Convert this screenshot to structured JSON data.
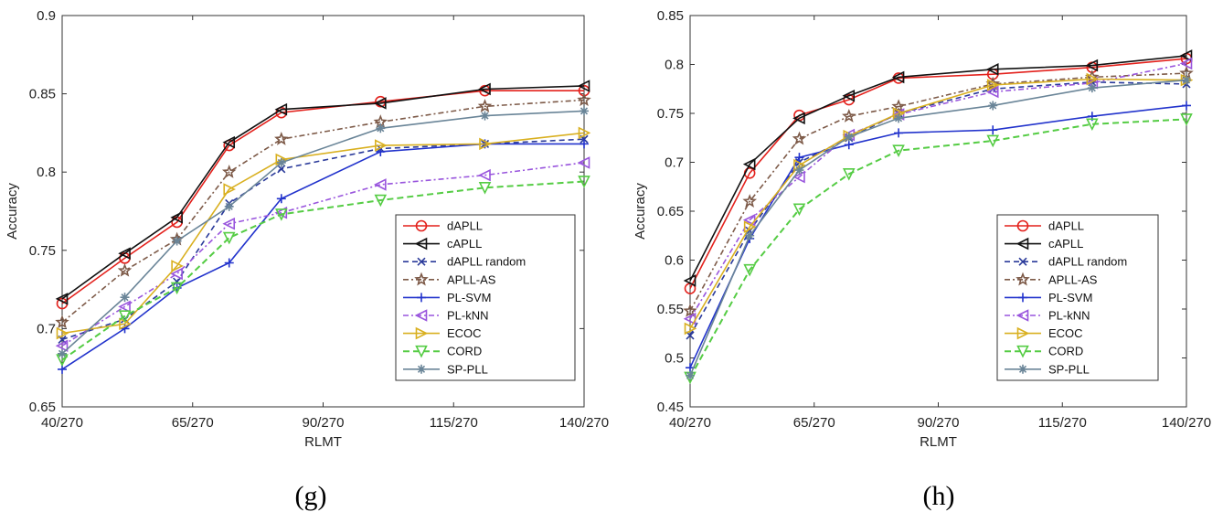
{
  "figure": {
    "captions": [
      "(g)",
      "(h)"
    ]
  },
  "chart_data": [
    {
      "type": "line",
      "caption": "(g)",
      "xlabel": "RLMT",
      "ylabel": "Accuracy",
      "x": [
        40,
        52,
        62,
        72,
        82,
        101,
        121,
        140
      ],
      "x_tick_values": [
        40,
        65,
        90,
        115,
        140
      ],
      "x_tick_labels": [
        "40/270",
        "65/270",
        "90/270",
        "115/270",
        "140/270"
      ],
      "xlim": [
        40,
        140
      ],
      "ylim": [
        0.65,
        0.9
      ],
      "y_ticks": [
        0.65,
        0.7,
        0.75,
        0.8,
        0.85,
        0.9
      ],
      "y_tick_labels": [
        "0.65",
        "0.7",
        "0.75",
        "0.8",
        "0.85",
        "0.9"
      ],
      "legend_position": "bottom-right",
      "series": [
        {
          "name": "dAPLL",
          "values": [
            0.716,
            0.745,
            0.768,
            0.817,
            0.838,
            0.845,
            0.852,
            0.852
          ]
        },
        {
          "name": "cAPLL",
          "values": [
            0.719,
            0.748,
            0.771,
            0.819,
            0.84,
            0.844,
            0.853,
            0.855
          ]
        },
        {
          "name": "dAPLL random",
          "values": [
            0.693,
            0.706,
            0.73,
            0.78,
            0.802,
            0.815,
            0.818,
            0.821
          ]
        },
        {
          "name": "APLL-AS",
          "values": [
            0.704,
            0.737,
            0.757,
            0.8,
            0.821,
            0.832,
            0.842,
            0.846
          ]
        },
        {
          "name": "PL-SVM",
          "values": [
            0.674,
            0.7,
            0.726,
            0.742,
            0.783,
            0.813,
            0.818,
            0.818
          ]
        },
        {
          "name": "PL-kNN",
          "values": [
            0.689,
            0.714,
            0.735,
            0.767,
            0.774,
            0.792,
            0.798,
            0.806
          ]
        },
        {
          "name": "ECOC",
          "values": [
            0.697,
            0.703,
            0.74,
            0.789,
            0.808,
            0.817,
            0.818,
            0.825
          ]
        },
        {
          "name": "CORD",
          "values": [
            0.68,
            0.708,
            0.726,
            0.758,
            0.773,
            0.782,
            0.79,
            0.794
          ]
        },
        {
          "name": "SP-PLL",
          "values": [
            0.684,
            0.72,
            0.756,
            0.778,
            0.806,
            0.828,
            0.836,
            0.839
          ]
        }
      ]
    },
    {
      "type": "line",
      "caption": "(h)",
      "xlabel": "RLMT",
      "ylabel": "Accuracy",
      "x": [
        40,
        52,
        62,
        72,
        82,
        101,
        121,
        140
      ],
      "x_tick_values": [
        40,
        65,
        90,
        115,
        140
      ],
      "x_tick_labels": [
        "40/270",
        "65/270",
        "90/270",
        "115/270",
        "140/270"
      ],
      "xlim": [
        40,
        140
      ],
      "ylim": [
        0.45,
        0.85
      ],
      "y_ticks": [
        0.45,
        0.5,
        0.55,
        0.6,
        0.65,
        0.7,
        0.75,
        0.8,
        0.85
      ],
      "y_tick_labels": [
        "0.45",
        "0.5",
        "0.55",
        "0.6",
        "0.65",
        "0.7",
        "0.75",
        "0.8",
        "0.85"
      ],
      "legend_position": "bottom-right",
      "series": [
        {
          "name": "dAPLL",
          "values": [
            0.571,
            0.689,
            0.748,
            0.764,
            0.786,
            0.79,
            0.797,
            0.806
          ]
        },
        {
          "name": "cAPLL",
          "values": [
            0.579,
            0.698,
            0.745,
            0.768,
            0.787,
            0.795,
            0.799,
            0.809
          ]
        },
        {
          "name": "dAPLL random",
          "values": [
            0.523,
            0.63,
            0.7,
            0.725,
            0.75,
            0.775,
            0.782,
            0.78
          ]
        },
        {
          "name": "APLL-AS",
          "values": [
            0.548,
            0.66,
            0.724,
            0.747,
            0.757,
            0.78,
            0.787,
            0.791
          ]
        },
        {
          "name": "PL-SVM",
          "values": [
            0.49,
            0.622,
            0.705,
            0.718,
            0.73,
            0.733,
            0.747,
            0.758
          ]
        },
        {
          "name": "PL-kNN",
          "values": [
            0.54,
            0.641,
            0.685,
            0.728,
            0.749,
            0.772,
            0.781,
            0.801
          ]
        },
        {
          "name": "ECOC",
          "values": [
            0.53,
            0.634,
            0.697,
            0.727,
            0.75,
            0.779,
            0.785,
            0.784
          ]
        },
        {
          "name": "CORD",
          "values": [
            0.48,
            0.59,
            0.652,
            0.688,
            0.712,
            0.722,
            0.739,
            0.744
          ]
        },
        {
          "name": "SP-PLL",
          "values": [
            0.482,
            0.625,
            0.692,
            0.726,
            0.745,
            0.758,
            0.776,
            0.784
          ]
        }
      ]
    }
  ],
  "series_styles": [
    {
      "color": "#e3211c",
      "dash": "",
      "marker": "circle"
    },
    {
      "color": "#111111",
      "dash": "",
      "marker": "triangle-left"
    },
    {
      "color": "#2a3a9a",
      "dash": "6,4",
      "marker": "x"
    },
    {
      "color": "#7d5a48",
      "dash": "6,3,2,3",
      "marker": "star"
    },
    {
      "color": "#2233cc",
      "dash": "",
      "marker": "plus"
    },
    {
      "color": "#9955dd",
      "dash": "6,3,2,3",
      "marker": "triangle-left"
    },
    {
      "color": "#d9b020",
      "dash": "",
      "marker": "triangle-right"
    },
    {
      "color": "#55cc44",
      "dash": "7,4",
      "marker": "triangle-down"
    },
    {
      "color": "#6a8598",
      "dash": "",
      "marker": "asterisk"
    }
  ]
}
